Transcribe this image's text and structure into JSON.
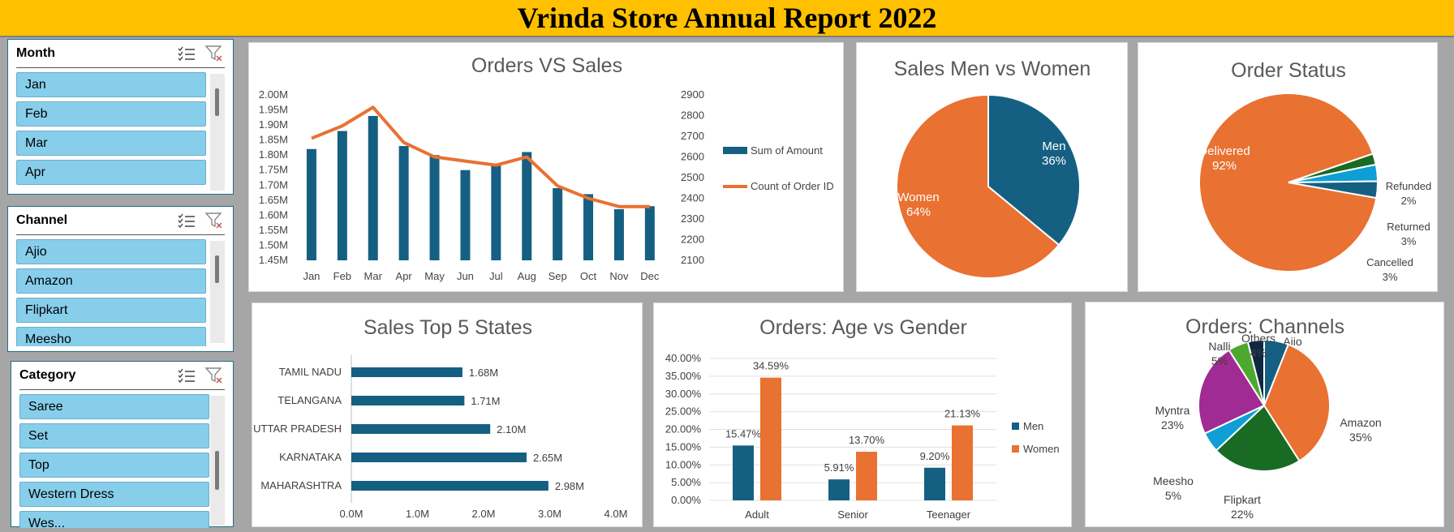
{
  "report_title": "Vrinda Store Annual Report 2022",
  "slicers": {
    "month": {
      "title": "Month",
      "items": [
        "Jan",
        "Feb",
        "Mar",
        "Apr"
      ]
    },
    "channel": {
      "title": "Channel",
      "items": [
        "Ajio",
        "Amazon",
        "Flipkart",
        "Meesho"
      ]
    },
    "category": {
      "title": "Category",
      "items": [
        "Saree",
        "Set",
        "Top",
        "Western Dress",
        "Wes..."
      ]
    }
  },
  "icons": {
    "multi_select": "multi-select-icon",
    "clear_filter": "clear-filter-icon"
  },
  "colors": {
    "banner": "#ffc000",
    "dark_blue": "#156082",
    "orange": "#e97132",
    "green": "#196b24",
    "light_blue": "#0f9ed5",
    "purple": "#a02b93",
    "lime": "#4ea72e",
    "navy": "#0e2841",
    "slicer_item": "#87ceeb"
  },
  "chart_data": [
    {
      "type": "bar",
      "title": "Orders VS Sales",
      "categories": [
        "Jan",
        "Feb",
        "Mar",
        "Apr",
        "May",
        "Jun",
        "Jul",
        "Aug",
        "Sep",
        "Oct",
        "Nov",
        "Dec"
      ],
      "series": [
        {
          "name": "Sum of Amount",
          "type": "bar",
          "axis": "left",
          "values": [
            1.82,
            1.88,
            1.93,
            1.83,
            1.8,
            1.75,
            1.77,
            1.81,
            1.69,
            1.67,
            1.62,
            1.63
          ]
        },
        {
          "name": "Count of Order ID",
          "type": "line",
          "axis": "right",
          "values": [
            2690,
            2750,
            2840,
            2670,
            2600,
            2580,
            2560,
            2600,
            2460,
            2400,
            2360,
            2360
          ]
        }
      ],
      "yticks_left": [
        "2.00M",
        "1.95M",
        "1.90M",
        "1.85M",
        "1.80M",
        "1.75M",
        "1.70M",
        "1.65M",
        "1.60M",
        "1.55M",
        "1.50M",
        "1.45M"
      ],
      "ylim_left": [
        1.45,
        2.0
      ],
      "yticks_right": [
        "2900",
        "2800",
        "2700",
        "2600",
        "2500",
        "2400",
        "2300",
        "2200",
        "2100"
      ],
      "ylim_right": [
        2100,
        2900
      ],
      "legend_position": "right"
    },
    {
      "type": "pie",
      "title": "Sales Men vs Women",
      "labels": [
        "Men",
        "Women"
      ],
      "values": [
        36,
        64
      ],
      "value_labels": [
        "36%",
        "64%"
      ]
    },
    {
      "type": "pie",
      "title": "Order Status",
      "labels": [
        "Delivered",
        "Refunded",
        "Returned",
        "Cancelled"
      ],
      "values": [
        92,
        2,
        3,
        3
      ],
      "value_labels": [
        "92%",
        "2%",
        "3%",
        "3%"
      ]
    },
    {
      "type": "bar",
      "orientation": "horizontal",
      "title": "Sales Top 5 States",
      "categories": [
        "TAMIL NADU",
        "TELANGANA",
        "UTTAR PRADESH",
        "KARNATAKA",
        "MAHARASHTRA"
      ],
      "values": [
        1.68,
        1.71,
        2.1,
        2.65,
        2.98
      ],
      "value_labels": [
        "1.68M",
        "1.71M",
        "2.10M",
        "2.65M",
        "2.98M"
      ],
      "xticks": [
        "0.0M",
        "1.0M",
        "2.0M",
        "3.0M",
        "4.0M"
      ],
      "xlim": [
        0,
        4
      ]
    },
    {
      "type": "bar",
      "title": "Orders: Age vs Gender",
      "categories": [
        "Adult",
        "Senior",
        "Teenager"
      ],
      "series": [
        {
          "name": "Men",
          "values": [
            15.47,
            5.91,
            9.2
          ],
          "value_labels": [
            "15.47%",
            "5.91%",
            "9.20%"
          ]
        },
        {
          "name": "Women",
          "values": [
            34.59,
            13.7,
            21.13
          ],
          "value_labels": [
            "34.59%",
            "13.70%",
            "21.13%"
          ]
        }
      ],
      "yticks": [
        "40.00%",
        "35.00%",
        "30.00%",
        "25.00%",
        "20.00%",
        "15.00%",
        "10.00%",
        "5.00%",
        "0.00%"
      ],
      "ylim": [
        0,
        40
      ],
      "legend_position": "right"
    },
    {
      "type": "pie",
      "title": "Orders: Channels",
      "labels": [
        "Ajio",
        "Amazon",
        "Flipkart",
        "Meesho",
        "Myntra",
        "Nalli",
        "Others"
      ],
      "values": [
        6,
        35,
        22,
        5,
        23,
        5,
        4
      ],
      "value_labels": [
        "6%",
        "35%",
        "22%",
        "5%",
        "23%",
        "5%",
        "4%"
      ]
    }
  ]
}
